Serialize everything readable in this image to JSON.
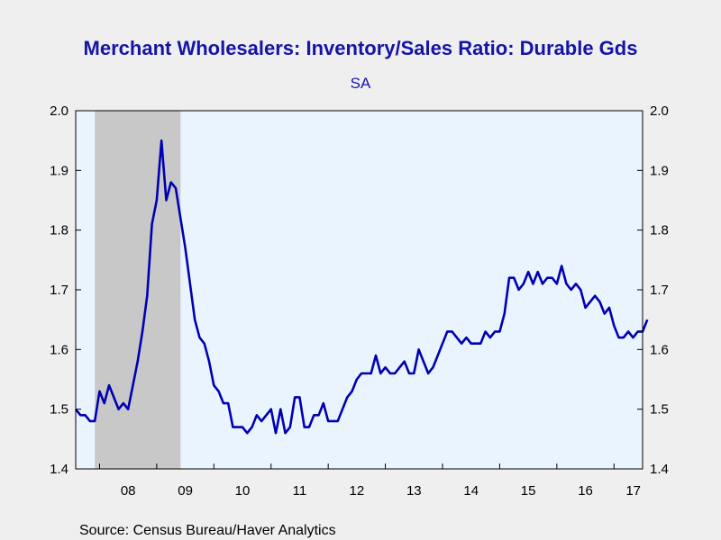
{
  "colors": {
    "page_background": "#efefef",
    "plot_background": "#eaf4fe",
    "recession_shading": "#c8c8c8",
    "line": "#0000b3",
    "title": "#1414a8"
  },
  "chart_data": {
    "type": "line",
    "title": "Merchant Wholesalers: Inventory/Sales Ratio: Durable Gds",
    "subtitle": "SA",
    "source": "Source:  Census Bureau/Haver Analytics",
    "xlim": [
      2007.583,
      2017.5
    ],
    "ylim": [
      1.4,
      2.0
    ],
    "y_ticks": [
      "1.4",
      "1.5",
      "1.6",
      "1.7",
      "1.8",
      "1.9",
      "2.0"
    ],
    "y_tick_values": [
      1.4,
      1.5,
      1.6,
      1.7,
      1.8,
      1.9,
      2.0
    ],
    "y_axis_both_sides": true,
    "x_tick_labels": [
      {
        "label": "08",
        "year": 2008
      },
      {
        "label": "09",
        "year": 2009
      },
      {
        "label": "10",
        "year": 2010
      },
      {
        "label": "11",
        "year": 2011
      },
      {
        "label": "12",
        "year": 2012
      },
      {
        "label": "13",
        "year": 2013
      },
      {
        "label": "14",
        "year": 2014
      },
      {
        "label": "15",
        "year": 2015
      },
      {
        "label": "16",
        "year": 2016
      },
      {
        "label": "17",
        "year": 2017
      }
    ],
    "recession_shading": {
      "start": 2007.917,
      "end": 2009.417
    },
    "grid": false,
    "legend": "none",
    "series": [
      {
        "start": "2007-08",
        "frequency": "monthly",
        "values": [
          1.5,
          1.49,
          1.49,
          1.48,
          1.48,
          1.53,
          1.51,
          1.54,
          1.52,
          1.5,
          1.51,
          1.5,
          1.54,
          1.58,
          1.63,
          1.69,
          1.81,
          1.85,
          1.95,
          1.85,
          1.88,
          1.87,
          1.82,
          1.77,
          1.71,
          1.65,
          1.62,
          1.61,
          1.58,
          1.54,
          1.53,
          1.51,
          1.51,
          1.47,
          1.47,
          1.47,
          1.46,
          1.47,
          1.49,
          1.48,
          1.49,
          1.5,
          1.46,
          1.5,
          1.46,
          1.47,
          1.52,
          1.52,
          1.47,
          1.47,
          1.49,
          1.49,
          1.51,
          1.48,
          1.48,
          1.48,
          1.5,
          1.52,
          1.53,
          1.55,
          1.56,
          1.56,
          1.56,
          1.59,
          1.56,
          1.57,
          1.56,
          1.56,
          1.57,
          1.58,
          1.56,
          1.56,
          1.6,
          1.58,
          1.56,
          1.57,
          1.59,
          1.61,
          1.63,
          1.63,
          1.62,
          1.61,
          1.62,
          1.61,
          1.61,
          1.61,
          1.63,
          1.62,
          1.63,
          1.63,
          1.66,
          1.72,
          1.72,
          1.7,
          1.71,
          1.73,
          1.71,
          1.73,
          1.71,
          1.72,
          1.72,
          1.71,
          1.74,
          1.71,
          1.7,
          1.71,
          1.7,
          1.67,
          1.68,
          1.69,
          1.68,
          1.66,
          1.67,
          1.64,
          1.62,
          1.62,
          1.63,
          1.62,
          1.63,
          1.63,
          1.65
        ]
      }
    ]
  }
}
